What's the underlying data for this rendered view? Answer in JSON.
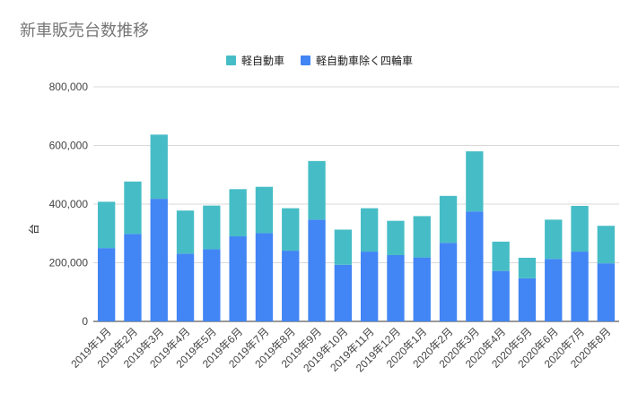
{
  "title": "新車販売台数推移",
  "chart_data": {
    "type": "bar",
    "stacked": true,
    "title": "新車販売台数推移",
    "xlabel": "",
    "ylabel": "台",
    "ylim": [
      0,
      800000
    ],
    "yticks": [
      0,
      200000,
      400000,
      600000,
      800000
    ],
    "ytick_labels": [
      "0",
      "200,000",
      "400,000",
      "600,000",
      "800,000"
    ],
    "grid": true,
    "legend_position": "top",
    "categories": [
      "2019年1月",
      "2019年2月",
      "2019年3月",
      "2019年4月",
      "2019年5月",
      "2019年6月",
      "2019年7月",
      "2019年8月",
      "2019年9月",
      "2019年10月",
      "2019年11月",
      "2019年12月",
      "2020年1月",
      "2020年2月",
      "2020年3月",
      "2020年4月",
      "2020年5月",
      "2020年6月",
      "2020年7月",
      "2020年8月"
    ],
    "series": [
      {
        "name": "軽自動車除く四輪車",
        "color": "#4285f4",
        "values": [
          250000,
          298000,
          418000,
          231000,
          246000,
          290000,
          301000,
          241000,
          347000,
          193000,
          238000,
          226000,
          218000,
          268000,
          375000,
          172000,
          147000,
          213000,
          238000,
          198000
        ]
      },
      {
        "name": "軽自動車",
        "color": "#46bdc6",
        "values": [
          158000,
          179000,
          219000,
          147000,
          149000,
          161000,
          158000,
          145000,
          200000,
          120000,
          148000,
          117000,
          141000,
          160000,
          205000,
          100000,
          70000,
          134000,
          156000,
          128000
        ]
      }
    ]
  }
}
